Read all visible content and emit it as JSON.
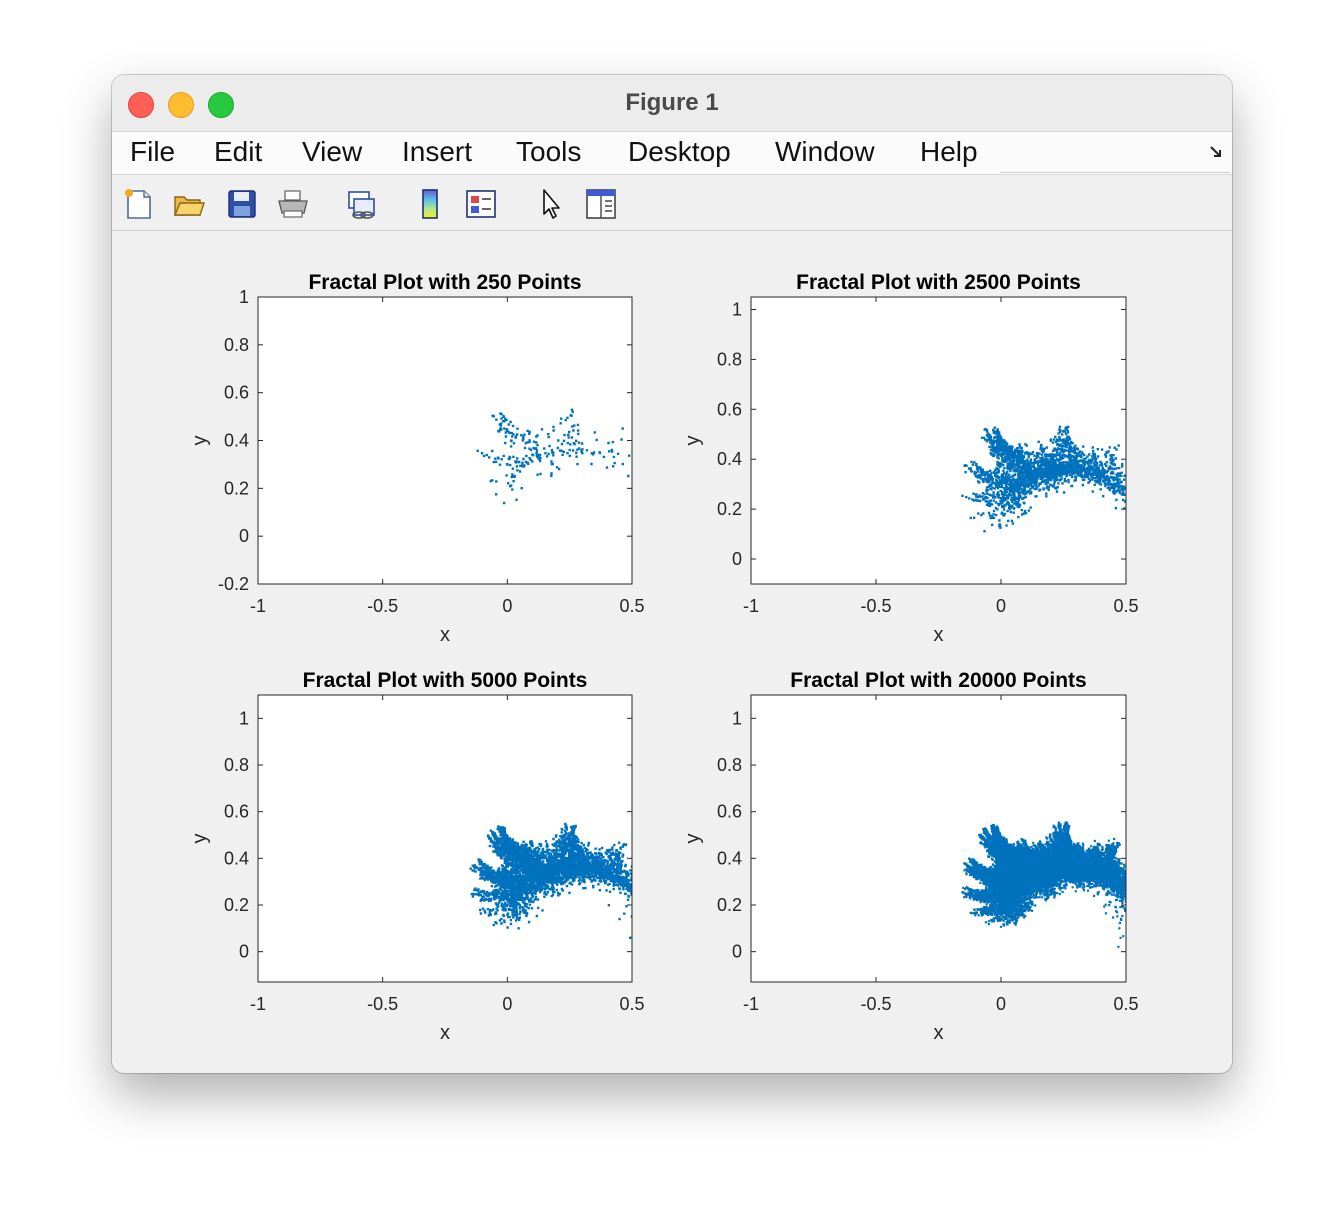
{
  "window": {
    "title": "Figure 1"
  },
  "menu": [
    "File",
    "Edit",
    "View",
    "Insert",
    "Tools",
    "Desktop",
    "Window",
    "Help"
  ],
  "toolbar": [
    {
      "icon": "new-figure-icon"
    },
    {
      "icon": "open-file-icon"
    },
    {
      "icon": "save-icon"
    },
    {
      "icon": "print-icon"
    },
    {
      "icon": "link-plot-icon"
    },
    {
      "icon": "insert-colorbar-icon"
    },
    {
      "icon": "insert-legend-icon"
    },
    {
      "icon": "pointer-icon"
    },
    {
      "icon": "property-inspector-icon"
    }
  ],
  "colors": {
    "marker": "#0072bd"
  },
  "chart_data": [
    {
      "type": "scatter",
      "title": "Fractal Plot with 250 Points",
      "xlabel": "x",
      "ylabel": "y",
      "xlim": [
        -1,
        0.5
      ],
      "ylim": [
        -0.2,
        1
      ],
      "xticks": [
        "-1",
        "-0.5",
        "0",
        "0.5"
      ],
      "yticks": [
        "-0.2",
        "0",
        "0.2",
        "0.4",
        "0.6",
        "0.8",
        "1"
      ],
      "points": 250
    },
    {
      "type": "scatter",
      "title": "Fractal Plot with 2500 Points",
      "xlabel": "x",
      "ylabel": "y",
      "xlim": [
        -1,
        0.5
      ],
      "ylim": [
        -0.1,
        1.05
      ],
      "xticks": [
        "-1",
        "-0.5",
        "0",
        "0.5"
      ],
      "yticks": [
        "0",
        "0.2",
        "0.4",
        "0.6",
        "0.8",
        "1"
      ],
      "points": 2500
    },
    {
      "type": "scatter",
      "title": "Fractal Plot with 5000 Points",
      "xlabel": "x",
      "ylabel": "y",
      "xlim": [
        -1,
        0.5
      ],
      "ylim": [
        -0.13,
        1.1
      ],
      "xticks": [
        "-1",
        "-0.5",
        "0",
        "0.5"
      ],
      "yticks": [
        "0",
        "0.2",
        "0.4",
        "0.6",
        "0.8",
        "1"
      ],
      "points": 5000
    },
    {
      "type": "scatter",
      "title": "Fractal Plot with 20000 Points",
      "xlabel": "x",
      "ylabel": "y",
      "xlim": [
        -1,
        0.5
      ],
      "ylim": [
        -0.13,
        1.1
      ],
      "xticks": [
        "-1",
        "-0.5",
        "0",
        "0.5"
      ],
      "yticks": [
        "0",
        "0.2",
        "0.4",
        "0.6",
        "0.8",
        "1"
      ],
      "points": 20000
    }
  ]
}
